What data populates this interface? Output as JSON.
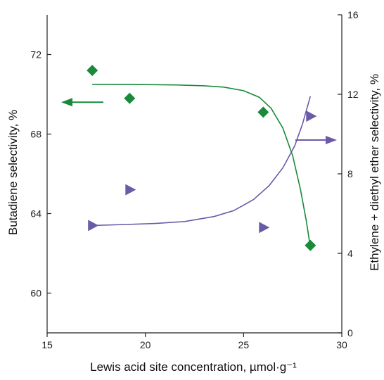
{
  "chart_data": {
    "type": "scatter",
    "title": "",
    "xlabel": "Lewis acid site concentration, µmol·g⁻¹",
    "ylabel_left": "Butadiene selectivity, %",
    "ylabel_right": "Ethylene + diethyl ether selectivity, %",
    "xlim": [
      15,
      30
    ],
    "ylim_left": [
      58,
      74
    ],
    "ylim_right": [
      0,
      16
    ],
    "x_ticks": [
      15,
      20,
      25,
      30
    ],
    "y_left_ticks": [
      60,
      64,
      68,
      72
    ],
    "y_right_ticks": [
      0,
      4,
      8,
      12,
      16
    ],
    "grid": false,
    "series": [
      {
        "axis": "left",
        "marker": "diamond",
        "color": "#1a8a3a",
        "x": [
          17.3,
          19.2,
          26.0,
          28.4
        ],
        "y": [
          71.2,
          69.8,
          69.1,
          62.4
        ],
        "fit": {
          "x": [
            17.3,
            18.5,
            20.0,
            21.5,
            23.0,
            24.0,
            25.0,
            25.8,
            26.4,
            27.0,
            27.5,
            27.9,
            28.2,
            28.4
          ],
          "y": [
            70.5,
            70.5,
            70.49,
            70.47,
            70.43,
            70.36,
            70.18,
            69.85,
            69.3,
            68.3,
            66.9,
            65.2,
            63.6,
            62.3
          ]
        }
      },
      {
        "axis": "right",
        "marker": "triangle-right",
        "color": "#6a5aa8",
        "x": [
          17.3,
          19.2,
          26.0,
          28.4
        ],
        "y": [
          5.4,
          7.2,
          5.3,
          10.9
        ],
        "fit": {
          "x": [
            17.3,
            19.0,
            20.5,
            22.0,
            23.5,
            24.5,
            25.5,
            26.3,
            27.0,
            27.6,
            28.0,
            28.4
          ],
          "y": [
            5.4,
            5.45,
            5.5,
            5.6,
            5.85,
            6.15,
            6.7,
            7.4,
            8.3,
            9.4,
            10.5,
            11.9
          ]
        }
      }
    ],
    "arrows": [
      {
        "direction": "left",
        "color": "#1a8a3a"
      },
      {
        "direction": "right",
        "color": "#6a5aa8"
      }
    ]
  }
}
